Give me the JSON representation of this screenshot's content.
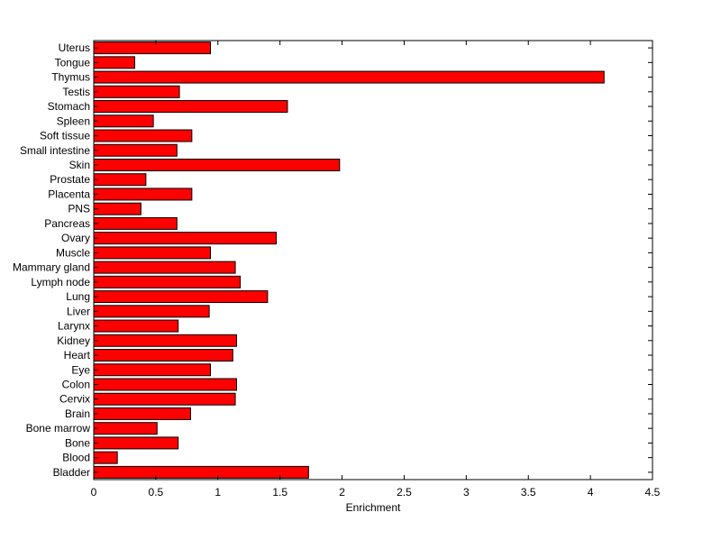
{
  "chart_data": {
    "type": "bar",
    "orientation": "horizontal",
    "title": "",
    "xlabel": "Enrichment",
    "ylabel": "",
    "xlim": [
      0,
      4.5
    ],
    "xticks": [
      "0",
      "0.5",
      "1",
      "1.5",
      "2",
      "2.5",
      "3",
      "3.5",
      "4",
      "4.5"
    ],
    "grid": false,
    "bar_color": "#ff0000",
    "edge_color": "#000000",
    "categories": [
      "Bladder",
      "Blood",
      "Bone",
      "Bone marrow",
      "Brain",
      "Cervix",
      "Colon",
      "Eye",
      "Heart",
      "Kidney",
      "Larynx",
      "Liver",
      "Lung",
      "Lymph node",
      "Mammary gland",
      "Muscle",
      "Ovary",
      "Pancreas",
      "PNS",
      "Placenta",
      "Prostate",
      "Skin",
      "Small intestine",
      "Soft tissue",
      "Spleen",
      "Stomach",
      "Testis",
      "Thymus",
      "Tongue",
      "Uterus"
    ],
    "values": [
      1.73,
      0.19,
      0.68,
      0.51,
      0.78,
      1.14,
      1.15,
      0.94,
      1.12,
      1.15,
      0.68,
      0.93,
      1.4,
      1.18,
      1.14,
      0.94,
      1.47,
      0.67,
      0.38,
      0.79,
      0.42,
      1.98,
      0.67,
      0.79,
      0.48,
      1.56,
      0.69,
      4.11,
      0.33,
      0.94
    ]
  }
}
